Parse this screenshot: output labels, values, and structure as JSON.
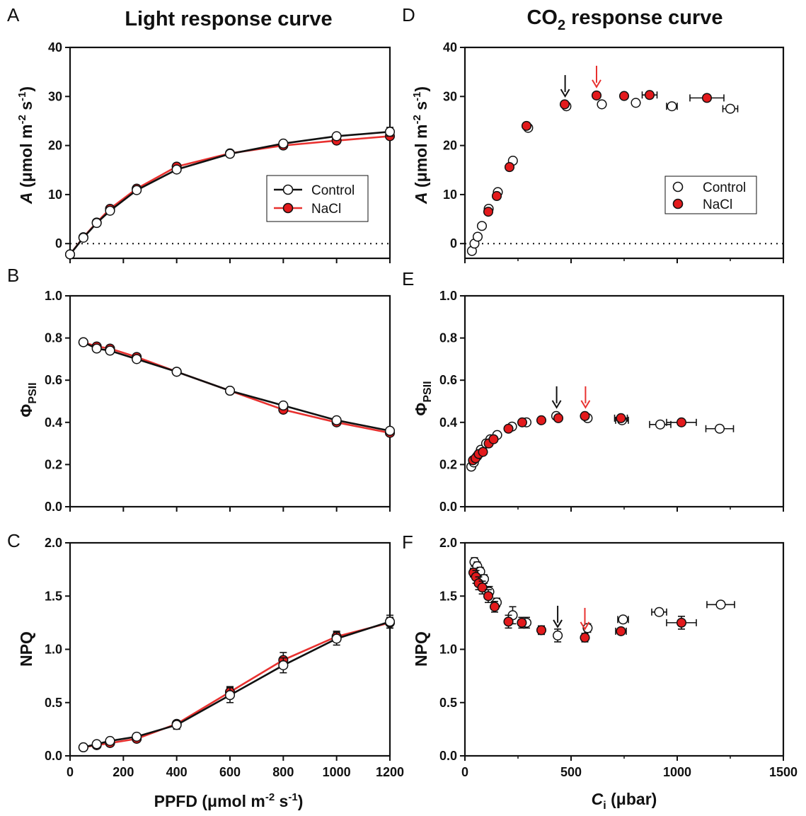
{
  "colors": {
    "control_fill": "#ffffff",
    "nacl_fill": "#e31a1c",
    "nacl_line": "#e8312f",
    "ink": "#111111",
    "arrow_red": "#e8312f"
  },
  "titles": {
    "light": "Light response curve",
    "co2_main": "CO",
    "co2_sub": "2",
    "co2_rest": " response curve"
  },
  "labels": {
    "A_base": "A",
    "A_units_pre": "(μmol m",
    "exp_m2": "-2",
    "s_part": " s",
    "exp_m1": "-1",
    "close": ")",
    "phi": "Φ",
    "phi_sub": "PSII",
    "npq": "NPQ",
    "ppfd_pre": "PPFD (μmol m",
    "ci_base": "C",
    "ci_sub": "i",
    "ci_units": " (μbar)"
  },
  "legend": {
    "control": "Control",
    "nacl": "NaCl"
  },
  "chart_data": [
    {
      "panel": "A",
      "type": "line",
      "ylabel": "A (μmol m-2 s-1)",
      "xlim": [
        0,
        1200
      ],
      "ylim": [
        -3,
        40
      ],
      "yticks": [
        "0",
        "10",
        "20",
        "30",
        "40"
      ],
      "xticks": [
        0,
        200,
        400,
        600,
        800,
        1000,
        1200
      ],
      "zero_line": true,
      "legend": "right-middle, line+marker",
      "series": [
        {
          "name": "Control",
          "x": [
            0,
            50,
            100,
            150,
            250,
            400,
            600,
            800,
            1000,
            1200
          ],
          "y": [
            -2.2,
            1.2,
            4.2,
            6.7,
            10.9,
            15.1,
            18.3,
            20.4,
            21.9,
            22.8
          ],
          "err": [
            0.4,
            0.3,
            0.3,
            0.3,
            0.4,
            0.4,
            0.4,
            0.4,
            0.4,
            0.9
          ]
        },
        {
          "name": "NaCl",
          "x": [
            0,
            50,
            100,
            150,
            250,
            400,
            600,
            800,
            1000,
            1200
          ],
          "y": [
            -2.2,
            1.3,
            4.3,
            7.1,
            11.2,
            15.7,
            18.4,
            20.0,
            21.0,
            21.9
          ],
          "err": [
            0.3,
            0.3,
            0.3,
            0.3,
            0.4,
            0.4,
            0.4,
            0.4,
            0.4,
            0.6
          ]
        }
      ]
    },
    {
      "panel": "B",
      "type": "line",
      "ylabel": "ΦPSII",
      "xlim": [
        0,
        1200
      ],
      "ylim": [
        0,
        1
      ],
      "yticks": [
        "0.0",
        "0.2",
        "0.4",
        "0.6",
        "0.8",
        "1.0"
      ],
      "xticks": [
        0,
        200,
        400,
        600,
        800,
        1000,
        1200
      ],
      "series": [
        {
          "name": "Control",
          "x": [
            50,
            100,
            150,
            250,
            400,
            600,
            800,
            1000,
            1200
          ],
          "y": [
            0.78,
            0.75,
            0.74,
            0.7,
            0.64,
            0.55,
            0.48,
            0.41,
            0.36
          ],
          "err": [
            0.005,
            0.005,
            0.005,
            0.005,
            0.005,
            0.005,
            0.005,
            0.005,
            0.005
          ]
        },
        {
          "name": "NaCl",
          "x": [
            50,
            100,
            150,
            250,
            400,
            600,
            800,
            1000,
            1200
          ],
          "y": [
            0.78,
            0.76,
            0.75,
            0.71,
            0.64,
            0.55,
            0.46,
            0.4,
            0.35
          ],
          "err": [
            0.005,
            0.005,
            0.005,
            0.005,
            0.005,
            0.005,
            0.005,
            0.005,
            0.005
          ]
        }
      ]
    },
    {
      "panel": "C",
      "type": "line",
      "ylabel": "NPQ",
      "xlabel": "PPFD (μmol m-2 s-1)",
      "xlim": [
        0,
        1200
      ],
      "ylim": [
        0,
        2
      ],
      "yticks": [
        "0.0",
        "0.5",
        "1.0",
        "1.5",
        "2.0"
      ],
      "xticks": [
        0,
        200,
        400,
        600,
        800,
        1000,
        1200
      ],
      "xticklabels": [
        "0",
        "200",
        "400",
        "600",
        "800",
        "1000",
        "1200"
      ],
      "series": [
        {
          "name": "Control",
          "x": [
            50,
            100,
            150,
            250,
            400,
            600,
            800,
            1000,
            1200
          ],
          "y": [
            0.08,
            0.11,
            0.14,
            0.18,
            0.29,
            0.57,
            0.85,
            1.1,
            1.26
          ],
          "err": [
            0.01,
            0.01,
            0.02,
            0.02,
            0.04,
            0.07,
            0.07,
            0.06,
            0.06
          ]
        },
        {
          "name": "NaCl",
          "x": [
            50,
            100,
            150,
            250,
            400,
            600,
            800,
            1000,
            1200
          ],
          "y": [
            0.08,
            0.1,
            0.12,
            0.16,
            0.3,
            0.6,
            0.9,
            1.12,
            1.25
          ],
          "err": [
            0.01,
            0.01,
            0.01,
            0.02,
            0.03,
            0.05,
            0.07,
            0.05,
            0.05
          ]
        }
      ]
    },
    {
      "panel": "D",
      "type": "scatter",
      "ylabel": "A (μmol m-2 s-1)",
      "xlim": [
        0,
        1500
      ],
      "ylim": [
        -3,
        40
      ],
      "yticks": [
        "0",
        "10",
        "20",
        "30",
        "40"
      ],
      "xticks": [
        0,
        500,
        1000,
        1500
      ],
      "zero_line": true,
      "legend": "right-middle, marker only",
      "arrows": [
        {
          "color": "black",
          "x": 472,
          "y": 28.3
        },
        {
          "color": "red",
          "x": 620,
          "y": 30.2
        }
      ],
      "series": [
        {
          "name": "Control",
          "x": [
            33,
            45,
            60,
            80,
            112,
            155,
            226,
            298,
            478,
            645,
            805,
            975,
            1250
          ],
          "y": [
            -1.5,
            0.0,
            1.4,
            3.6,
            7.1,
            10.5,
            16.9,
            23.6,
            28.0,
            28.4,
            28.7,
            28.0,
            27.5
          ],
          "xerr": [
            3,
            3,
            3,
            4,
            5,
            6,
            6,
            8,
            12,
            15,
            20,
            25,
            35
          ]
        },
        {
          "name": "NaCl",
          "x": [
            110,
            150,
            210,
            290,
            470,
            620,
            750,
            870,
            1140
          ],
          "y": [
            6.5,
            9.7,
            15.6,
            24.0,
            28.4,
            30.2,
            30.1,
            30.3,
            29.7
          ],
          "xerr": [
            4,
            6,
            8,
            8,
            15,
            18,
            20,
            35,
            80
          ]
        }
      ]
    },
    {
      "panel": "E",
      "type": "scatter",
      "ylabel": "ΦPSII",
      "xlim": [
        0,
        1500
      ],
      "ylim": [
        0,
        1
      ],
      "yticks": [
        "0.0",
        "0.2",
        "0.4",
        "0.6",
        "0.8",
        "1.0"
      ],
      "xticks": [
        0,
        500,
        1000,
        1500
      ],
      "arrows": [
        {
          "color": "black",
          "x": 432,
          "y": 0.43
        },
        {
          "color": "red",
          "x": 568,
          "y": 0.43
        }
      ],
      "series": [
        {
          "name": "Control",
          "x": [
            30,
            42,
            58,
            75,
            100,
            120,
            152,
            222,
            290,
            430,
            578,
            740,
            920,
            1200
          ],
          "y": [
            0.19,
            0.21,
            0.24,
            0.27,
            0.3,
            0.32,
            0.34,
            0.38,
            0.4,
            0.43,
            0.42,
            0.41,
            0.39,
            0.37
          ],
          "xerr": [
            3,
            3,
            3,
            4,
            4,
            5,
            5,
            6,
            8,
            10,
            15,
            30,
            50,
            65
          ]
        },
        {
          "name": "NaCl",
          "x": [
            38,
            50,
            65,
            85,
            112,
            135,
            205,
            270,
            360,
            440,
            565,
            735,
            1020
          ],
          "y": [
            0.22,
            0.23,
            0.25,
            0.26,
            0.3,
            0.32,
            0.37,
            0.4,
            0.41,
            0.42,
            0.43,
            0.42,
            0.4
          ],
          "xerr": [
            3,
            3,
            3,
            4,
            4,
            5,
            6,
            8,
            10,
            15,
            20,
            30,
            70
          ]
        }
      ]
    },
    {
      "panel": "F",
      "type": "scatter",
      "ylabel": "NPQ",
      "xlabel": "Ci (μbar)",
      "xlim": [
        0,
        1500
      ],
      "ylim": [
        0,
        2
      ],
      "yticks": [
        "0.0",
        "0.5",
        "1.0",
        "1.5",
        "2.0"
      ],
      "xticks": [
        0,
        500,
        1000,
        1500
      ],
      "xticklabels": [
        "0",
        "500",
        "1000",
        "1500"
      ],
      "arrows": [
        {
          "color": "black",
          "x": 437,
          "y": 1.13
        },
        {
          "color": "red",
          "x": 565,
          "y": 1.11
        }
      ],
      "series": [
        {
          "name": "Control",
          "x": [
            45,
            58,
            72,
            90,
            115,
            150,
            225,
            290,
            437,
            578,
            745,
            915,
            1205
          ],
          "y": [
            1.82,
            1.78,
            1.73,
            1.66,
            1.54,
            1.44,
            1.32,
            1.25,
            1.13,
            1.2,
            1.28,
            1.35,
            1.42
          ],
          "err": [
            0.04,
            0.04,
            0.04,
            0.04,
            0.05,
            0.04,
            0.08,
            0.05,
            0.06,
            0.04,
            0.03,
            0.03,
            0.03
          ],
          "xerr": [
            3,
            3,
            3,
            4,
            5,
            6,
            8,
            10,
            15,
            18,
            25,
            35,
            65
          ]
        },
        {
          "name": "NaCl",
          "x": [
            40,
            52,
            65,
            82,
            110,
            140,
            205,
            268,
            360,
            565,
            735,
            1020
          ],
          "y": [
            1.72,
            1.68,
            1.62,
            1.58,
            1.5,
            1.4,
            1.26,
            1.25,
            1.18,
            1.11,
            1.17,
            1.25
          ],
          "err": [
            0.04,
            0.06,
            0.06,
            0.06,
            0.06,
            0.05,
            0.06,
            0.05,
            0.04,
            0.04,
            0.03,
            0.06
          ],
          "xerr": [
            3,
            3,
            3,
            4,
            5,
            6,
            8,
            10,
            15,
            20,
            25,
            70
          ]
        }
      ]
    }
  ]
}
